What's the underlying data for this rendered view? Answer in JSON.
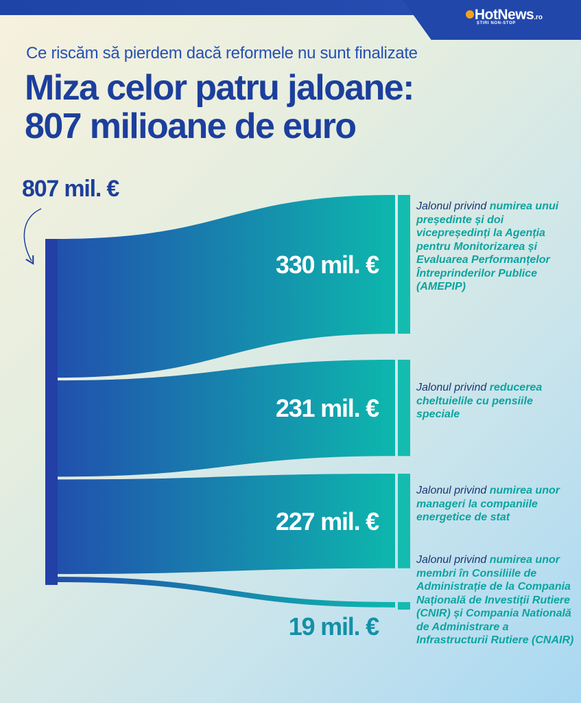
{
  "header": {
    "brand": "HotNews",
    "brand_tld": ".ro",
    "brand_tagline": "ȘTIRI NON-STOP"
  },
  "subtitle": "Ce riscăm să pierdem dacă reformele nu sunt finalizate",
  "title_line1": "Miza celor patru jaloane:",
  "title_line2": "807 milioane de euro",
  "colors": {
    "title": "#1c3f9d",
    "source_bar": "#2340a6",
    "flow_start": "#2150ad",
    "flow_end": "#0db7ad",
    "target_bar": "#14bcb0",
    "highlight": "#0aa4a0",
    "small_value": "#1390a8"
  },
  "chart_data": {
    "type": "sankey",
    "unit": "mil. €",
    "source": {
      "value": 807,
      "label": "807 mil. €"
    },
    "flows": [
      {
        "value": 330,
        "label": "330 mil. €",
        "description_prefix": "Jalonul privind ",
        "description_highlight": "numirea unui președinte și doi vicepreședinți la Agenția pentru Monitorizarea și Evaluarea Performanțelor Întreprinderilor Publice (AMEPIP)"
      },
      {
        "value": 231,
        "label": "231 mil. €",
        "description_prefix": "Jalonul privind ",
        "description_highlight": "reducerea cheltuielile cu pensiile speciale"
      },
      {
        "value": 227,
        "label": "227 mil. €",
        "description_prefix": "Jalonul privind ",
        "description_highlight": "numirea unor manageri la companiile energetice de stat"
      },
      {
        "value": 19,
        "label": "19 mil. €",
        "description_prefix": "Jalonul privind ",
        "description_highlight": "numirea unor membri în Consiliile de Administrație de la Compania Națională de Investiții Rutiere (CNIR) și Compania Natională de Administrare a Infrastructurii Rutiere (CNAIR)"
      }
    ]
  }
}
